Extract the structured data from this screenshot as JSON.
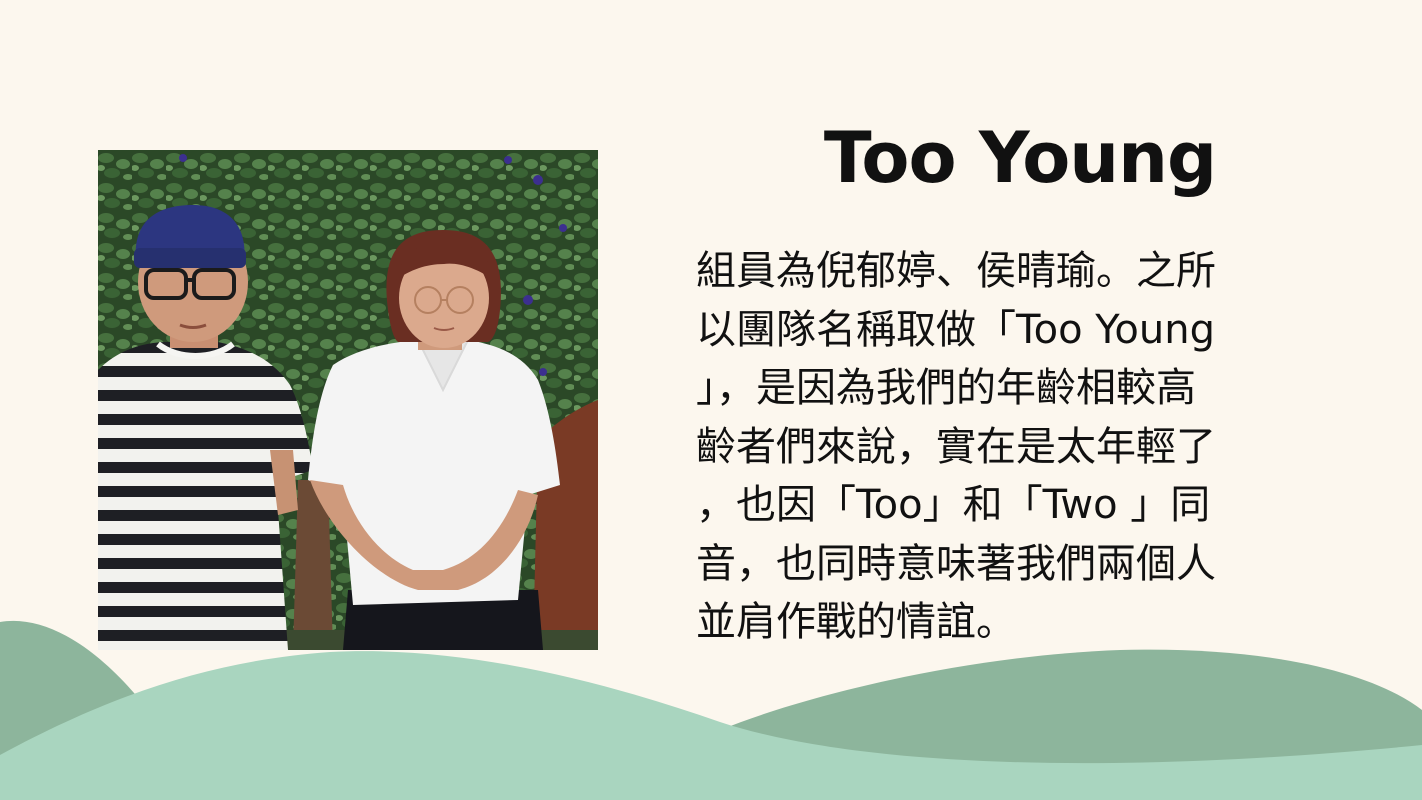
{
  "slide": {
    "title": "Too Young",
    "body_lines": [
      "組員為倪郁婷、侯晴瑜。之所",
      "以團隊名稱取做「Too Young",
      "」，是因為我們的年齡相較高",
      "齡者們來說，實在是太年輕了",
      "，也因「Too」和「Two 」同",
      "音，也同時意味著我們兩個人",
      "並肩作戰的情誼。"
    ]
  },
  "colors": {
    "background": "#fcf7ee",
    "hill_dark": "#8db59c",
    "hill_light": "#a9d5bf",
    "text": "#111111"
  },
  "photo": {
    "description_icon": "team-photo-two-people"
  }
}
